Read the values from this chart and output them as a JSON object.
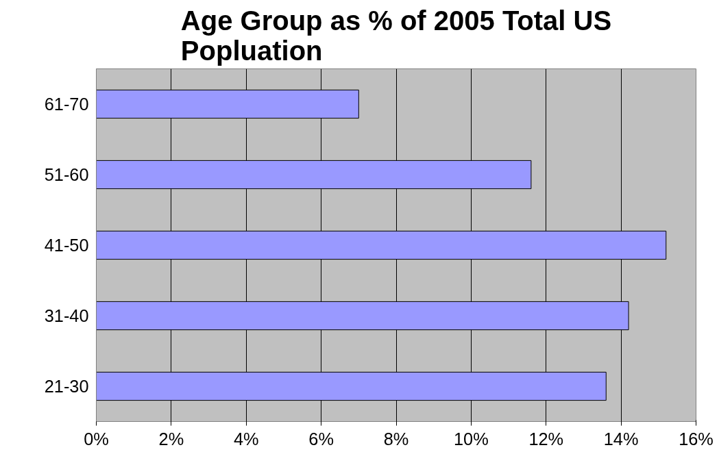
{
  "chart_data": {
    "type": "bar",
    "orientation": "horizontal",
    "title": "Age Group as % of 2005 Total US\nPopluation",
    "categories": [
      "61-70",
      "51-60",
      "41-50",
      "31-40",
      "21-30"
    ],
    "values": [
      7.0,
      11.6,
      15.2,
      14.2,
      13.6
    ],
    "color": "#9999ff",
    "xlim": [
      0,
      16
    ],
    "xticks": [
      {
        "value": 0,
        "label": "0%"
      },
      {
        "value": 2,
        "label": "2%"
      },
      {
        "value": 4,
        "label": "4%"
      },
      {
        "value": 6,
        "label": "6%"
      },
      {
        "value": 8,
        "label": "8%"
      },
      {
        "value": 10,
        "label": "10%"
      },
      {
        "value": 12,
        "label": "12%"
      },
      {
        "value": 14,
        "label": "14%"
      },
      {
        "value": 16,
        "label": "16%"
      }
    ],
    "grid": "x"
  }
}
